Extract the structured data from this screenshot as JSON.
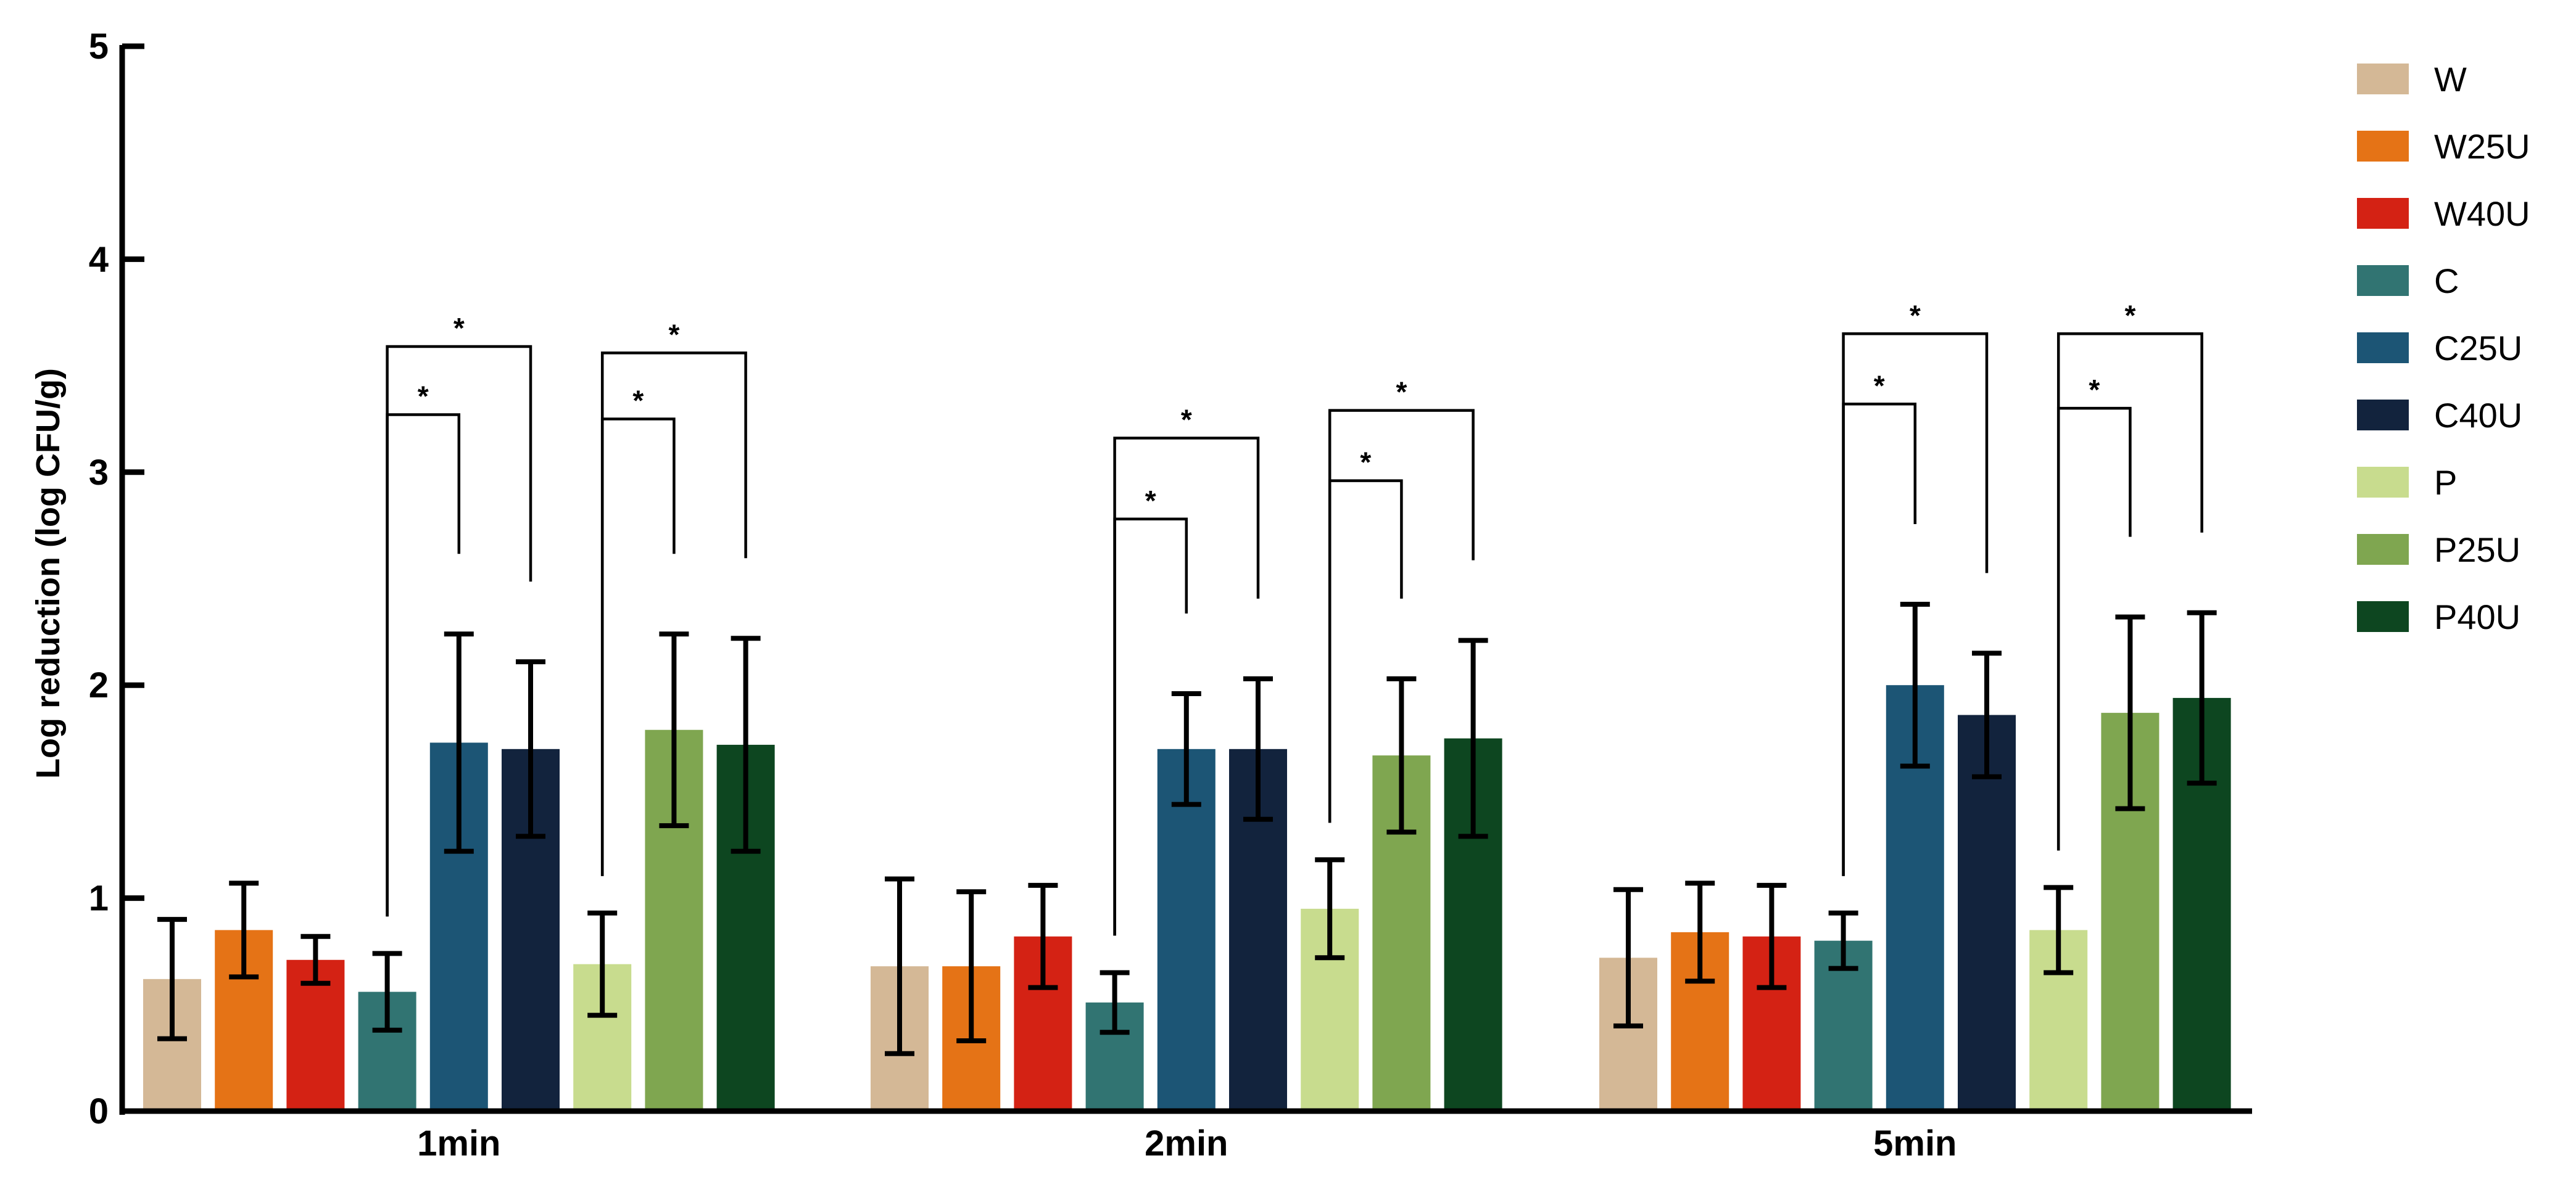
{
  "chart_data": {
    "type": "bar",
    "title": "",
    "xlabel": "",
    "ylabel": "Log reduction (log CFU/g)",
    "ylim": [
      0,
      5
    ],
    "yticks": [
      "0",
      "1",
      "2",
      "3",
      "4",
      "5"
    ],
    "grid": false,
    "legend_position": "right",
    "categories": [
      "1min",
      "2min",
      "5min"
    ],
    "series": [
      {
        "name": "W",
        "color": "#D4B896",
        "values": [
          0.62,
          0.68,
          0.72
        ],
        "errors": [
          0.28,
          0.41,
          0.32
        ]
      },
      {
        "name": "W25U",
        "color": "#E57316",
        "values": [
          0.85,
          0.68,
          0.84
        ],
        "errors": [
          0.22,
          0.35,
          0.23
        ]
      },
      {
        "name": "W40U",
        "color": "#D42214",
        "values": [
          0.71,
          0.82,
          0.82
        ],
        "errors": [
          0.11,
          0.24,
          0.24
        ]
      },
      {
        "name": "C",
        "color": "#317472",
        "values": [
          0.56,
          0.51,
          0.8
        ],
        "errors": [
          0.18,
          0.14,
          0.13
        ]
      },
      {
        "name": "C25U",
        "color": "#1C5575",
        "values": [
          1.73,
          1.7,
          2.0
        ],
        "errors": [
          0.51,
          0.26,
          0.38
        ]
      },
      {
        "name": "C40U",
        "color": "#12233D",
        "values": [
          1.7,
          1.7,
          1.86
        ],
        "errors": [
          0.41,
          0.33,
          0.29
        ]
      },
      {
        "name": "P",
        "color": "#C8DC8E",
        "values": [
          0.69,
          0.95,
          0.85
        ],
        "errors": [
          0.24,
          0.23,
          0.2
        ]
      },
      {
        "name": "P25U",
        "color": "#7FA650",
        "values": [
          1.79,
          1.67,
          1.87
        ],
        "errors": [
          0.45,
          0.36,
          0.45
        ]
      },
      {
        "name": "P40U",
        "color": "#0D4620",
        "values": [
          1.72,
          1.75,
          1.94
        ],
        "errors": [
          0.5,
          0.46,
          0.4
        ]
      }
    ],
    "significance": [
      {
        "category": "1min",
        "from": "C",
        "to": "C25U",
        "label": "*",
        "height": 3.27
      },
      {
        "category": "1min",
        "from": "C",
        "to": "C40U",
        "label": "*",
        "height": 3.59
      },
      {
        "category": "1min",
        "from": "P",
        "to": "P25U",
        "label": "*",
        "height": 3.25
      },
      {
        "category": "1min",
        "from": "P",
        "to": "P40U",
        "label": "*",
        "height": 3.56
      },
      {
        "category": "2min",
        "from": "C",
        "to": "C25U",
        "label": "*",
        "height": 2.78
      },
      {
        "category": "2min",
        "from": "C",
        "to": "C40U",
        "label": "*",
        "height": 3.16
      },
      {
        "category": "2min",
        "from": "P",
        "to": "P25U",
        "label": "*",
        "height": 2.96
      },
      {
        "category": "2min",
        "from": "P",
        "to": "P40U",
        "label": "*",
        "height": 3.29
      },
      {
        "category": "5min",
        "from": "C",
        "to": "C25U",
        "label": "*",
        "height": 3.32
      },
      {
        "category": "5min",
        "from": "C",
        "to": "C40U",
        "label": "*",
        "height": 3.65
      },
      {
        "category": "5min",
        "from": "P",
        "to": "P25U",
        "label": "*",
        "height": 3.3
      },
      {
        "category": "5min",
        "from": "P",
        "to": "P40U",
        "label": "*",
        "height": 3.65
      }
    ]
  }
}
